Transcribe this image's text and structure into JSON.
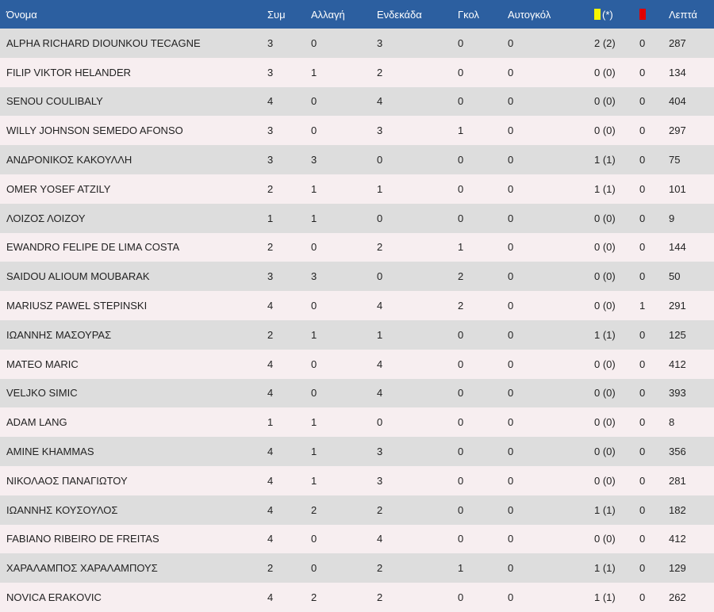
{
  "colors": {
    "header_bg": "#2c5fa0",
    "row_odd": "#dddddd",
    "row_even": "#f7eef0",
    "yellow_card": "#f6f600",
    "red_card": "#e00000"
  },
  "header": {
    "name": "Όνομα",
    "apps": "Συμ",
    "sub": "Αλλαγή",
    "starts": "Ενδεκάδα",
    "goals": "Γκολ",
    "own_goals": "Αυτογκόλ",
    "yellow_suffix": "(*)",
    "minutes": "Λεπτά"
  },
  "rows": [
    {
      "name": "ALPHA RICHARD DIOUNKOU TECAGNE",
      "apps": "3",
      "sub": "0",
      "starts": "3",
      "goals": "0",
      "own_goals": "0",
      "yellow": "2 (2)",
      "red": "0",
      "minutes": "287"
    },
    {
      "name": "FILIP VIKTOR HELANDER",
      "apps": "3",
      "sub": "1",
      "starts": "2",
      "goals": "0",
      "own_goals": "0",
      "yellow": "0 (0)",
      "red": "0",
      "minutes": "134"
    },
    {
      "name": "SENOU COULIBALY",
      "apps": "4",
      "sub": "0",
      "starts": "4",
      "goals": "0",
      "own_goals": "0",
      "yellow": "0 (0)",
      "red": "0",
      "minutes": "404"
    },
    {
      "name": "WILLY JOHNSON SEMEDO AFONSO",
      "apps": "3",
      "sub": "0",
      "starts": "3",
      "goals": "1",
      "own_goals": "0",
      "yellow": "0 (0)",
      "red": "0",
      "minutes": "297"
    },
    {
      "name": "ΑΝΔΡΟΝΙΚΟΣ ΚΑΚΟΥΛΛΗ",
      "apps": "3",
      "sub": "3",
      "starts": "0",
      "goals": "0",
      "own_goals": "0",
      "yellow": "1 (1)",
      "red": "0",
      "minutes": "75"
    },
    {
      "name": "OMER YOSEF ATZILY",
      "apps": "2",
      "sub": "1",
      "starts": "1",
      "goals": "0",
      "own_goals": "0",
      "yellow": "1 (1)",
      "red": "0",
      "minutes": "101"
    },
    {
      "name": "ΛΟΙΖΟΣ ΛΟΙΖΟΥ",
      "apps": "1",
      "sub": "1",
      "starts": "0",
      "goals": "0",
      "own_goals": "0",
      "yellow": "0 (0)",
      "red": "0",
      "minutes": "9"
    },
    {
      "name": "EWANDRO FELIPE DE LIMA COSTA",
      "apps": "2",
      "sub": "0",
      "starts": "2",
      "goals": "1",
      "own_goals": "0",
      "yellow": "0 (0)",
      "red": "0",
      "minutes": "144"
    },
    {
      "name": "SAIDOU ALIOUM MOUBARAK",
      "apps": "3",
      "sub": "3",
      "starts": "0",
      "goals": "2",
      "own_goals": "0",
      "yellow": "0 (0)",
      "red": "0",
      "minutes": "50"
    },
    {
      "name": "MARIUSZ PAWEL STEPINSKI",
      "apps": "4",
      "sub": "0",
      "starts": "4",
      "goals": "2",
      "own_goals": "0",
      "yellow": "0 (0)",
      "red": "1",
      "minutes": "291"
    },
    {
      "name": "ΙΩΑΝΝΗΣ ΜΑΣΟΥΡΑΣ",
      "apps": "2",
      "sub": "1",
      "starts": "1",
      "goals": "0",
      "own_goals": "0",
      "yellow": "1 (1)",
      "red": "0",
      "minutes": "125"
    },
    {
      "name": "MATEO MARIC",
      "apps": "4",
      "sub": "0",
      "starts": "4",
      "goals": "0",
      "own_goals": "0",
      "yellow": "0 (0)",
      "red": "0",
      "minutes": "412"
    },
    {
      "name": "VELJKO SIMIC",
      "apps": "4",
      "sub": "0",
      "starts": "4",
      "goals": "0",
      "own_goals": "0",
      "yellow": "0 (0)",
      "red": "0",
      "minutes": "393"
    },
    {
      "name": "ADAM LANG",
      "apps": "1",
      "sub": "1",
      "starts": "0",
      "goals": "0",
      "own_goals": "0",
      "yellow": "0 (0)",
      "red": "0",
      "minutes": "8"
    },
    {
      "name": "AMINE KHAMMAS",
      "apps": "4",
      "sub": "1",
      "starts": "3",
      "goals": "0",
      "own_goals": "0",
      "yellow": "0 (0)",
      "red": "0",
      "minutes": "356"
    },
    {
      "name": "ΝΙΚΟΛΑΟΣ ΠΑΝΑΓΙΩΤΟΥ",
      "apps": "4",
      "sub": "1",
      "starts": "3",
      "goals": "0",
      "own_goals": "0",
      "yellow": "0 (0)",
      "red": "0",
      "minutes": "281"
    },
    {
      "name": "ΙΩΑΝΝΗΣ ΚΟΥΣΟΥΛΟΣ",
      "apps": "4",
      "sub": "2",
      "starts": "2",
      "goals": "0",
      "own_goals": "0",
      "yellow": "1 (1)",
      "red": "0",
      "minutes": "182"
    },
    {
      "name": "FABIANO RIBEIRO DE FREITAS",
      "apps": "4",
      "sub": "0",
      "starts": "4",
      "goals": "0",
      "own_goals": "0",
      "yellow": "0 (0)",
      "red": "0",
      "minutes": "412"
    },
    {
      "name": "ΧΑΡΑΛΑΜΠΟΣ ΧΑΡΑΛΑΜΠΟΥΣ",
      "apps": "2",
      "sub": "0",
      "starts": "2",
      "goals": "1",
      "own_goals": "0",
      "yellow": "1 (1)",
      "red": "0",
      "minutes": "129"
    },
    {
      "name": "NOVICA ERAKOVIC",
      "apps": "4",
      "sub": "2",
      "starts": "2",
      "goals": "0",
      "own_goals": "0",
      "yellow": "1 (1)",
      "red": "0",
      "minutes": "262"
    }
  ]
}
